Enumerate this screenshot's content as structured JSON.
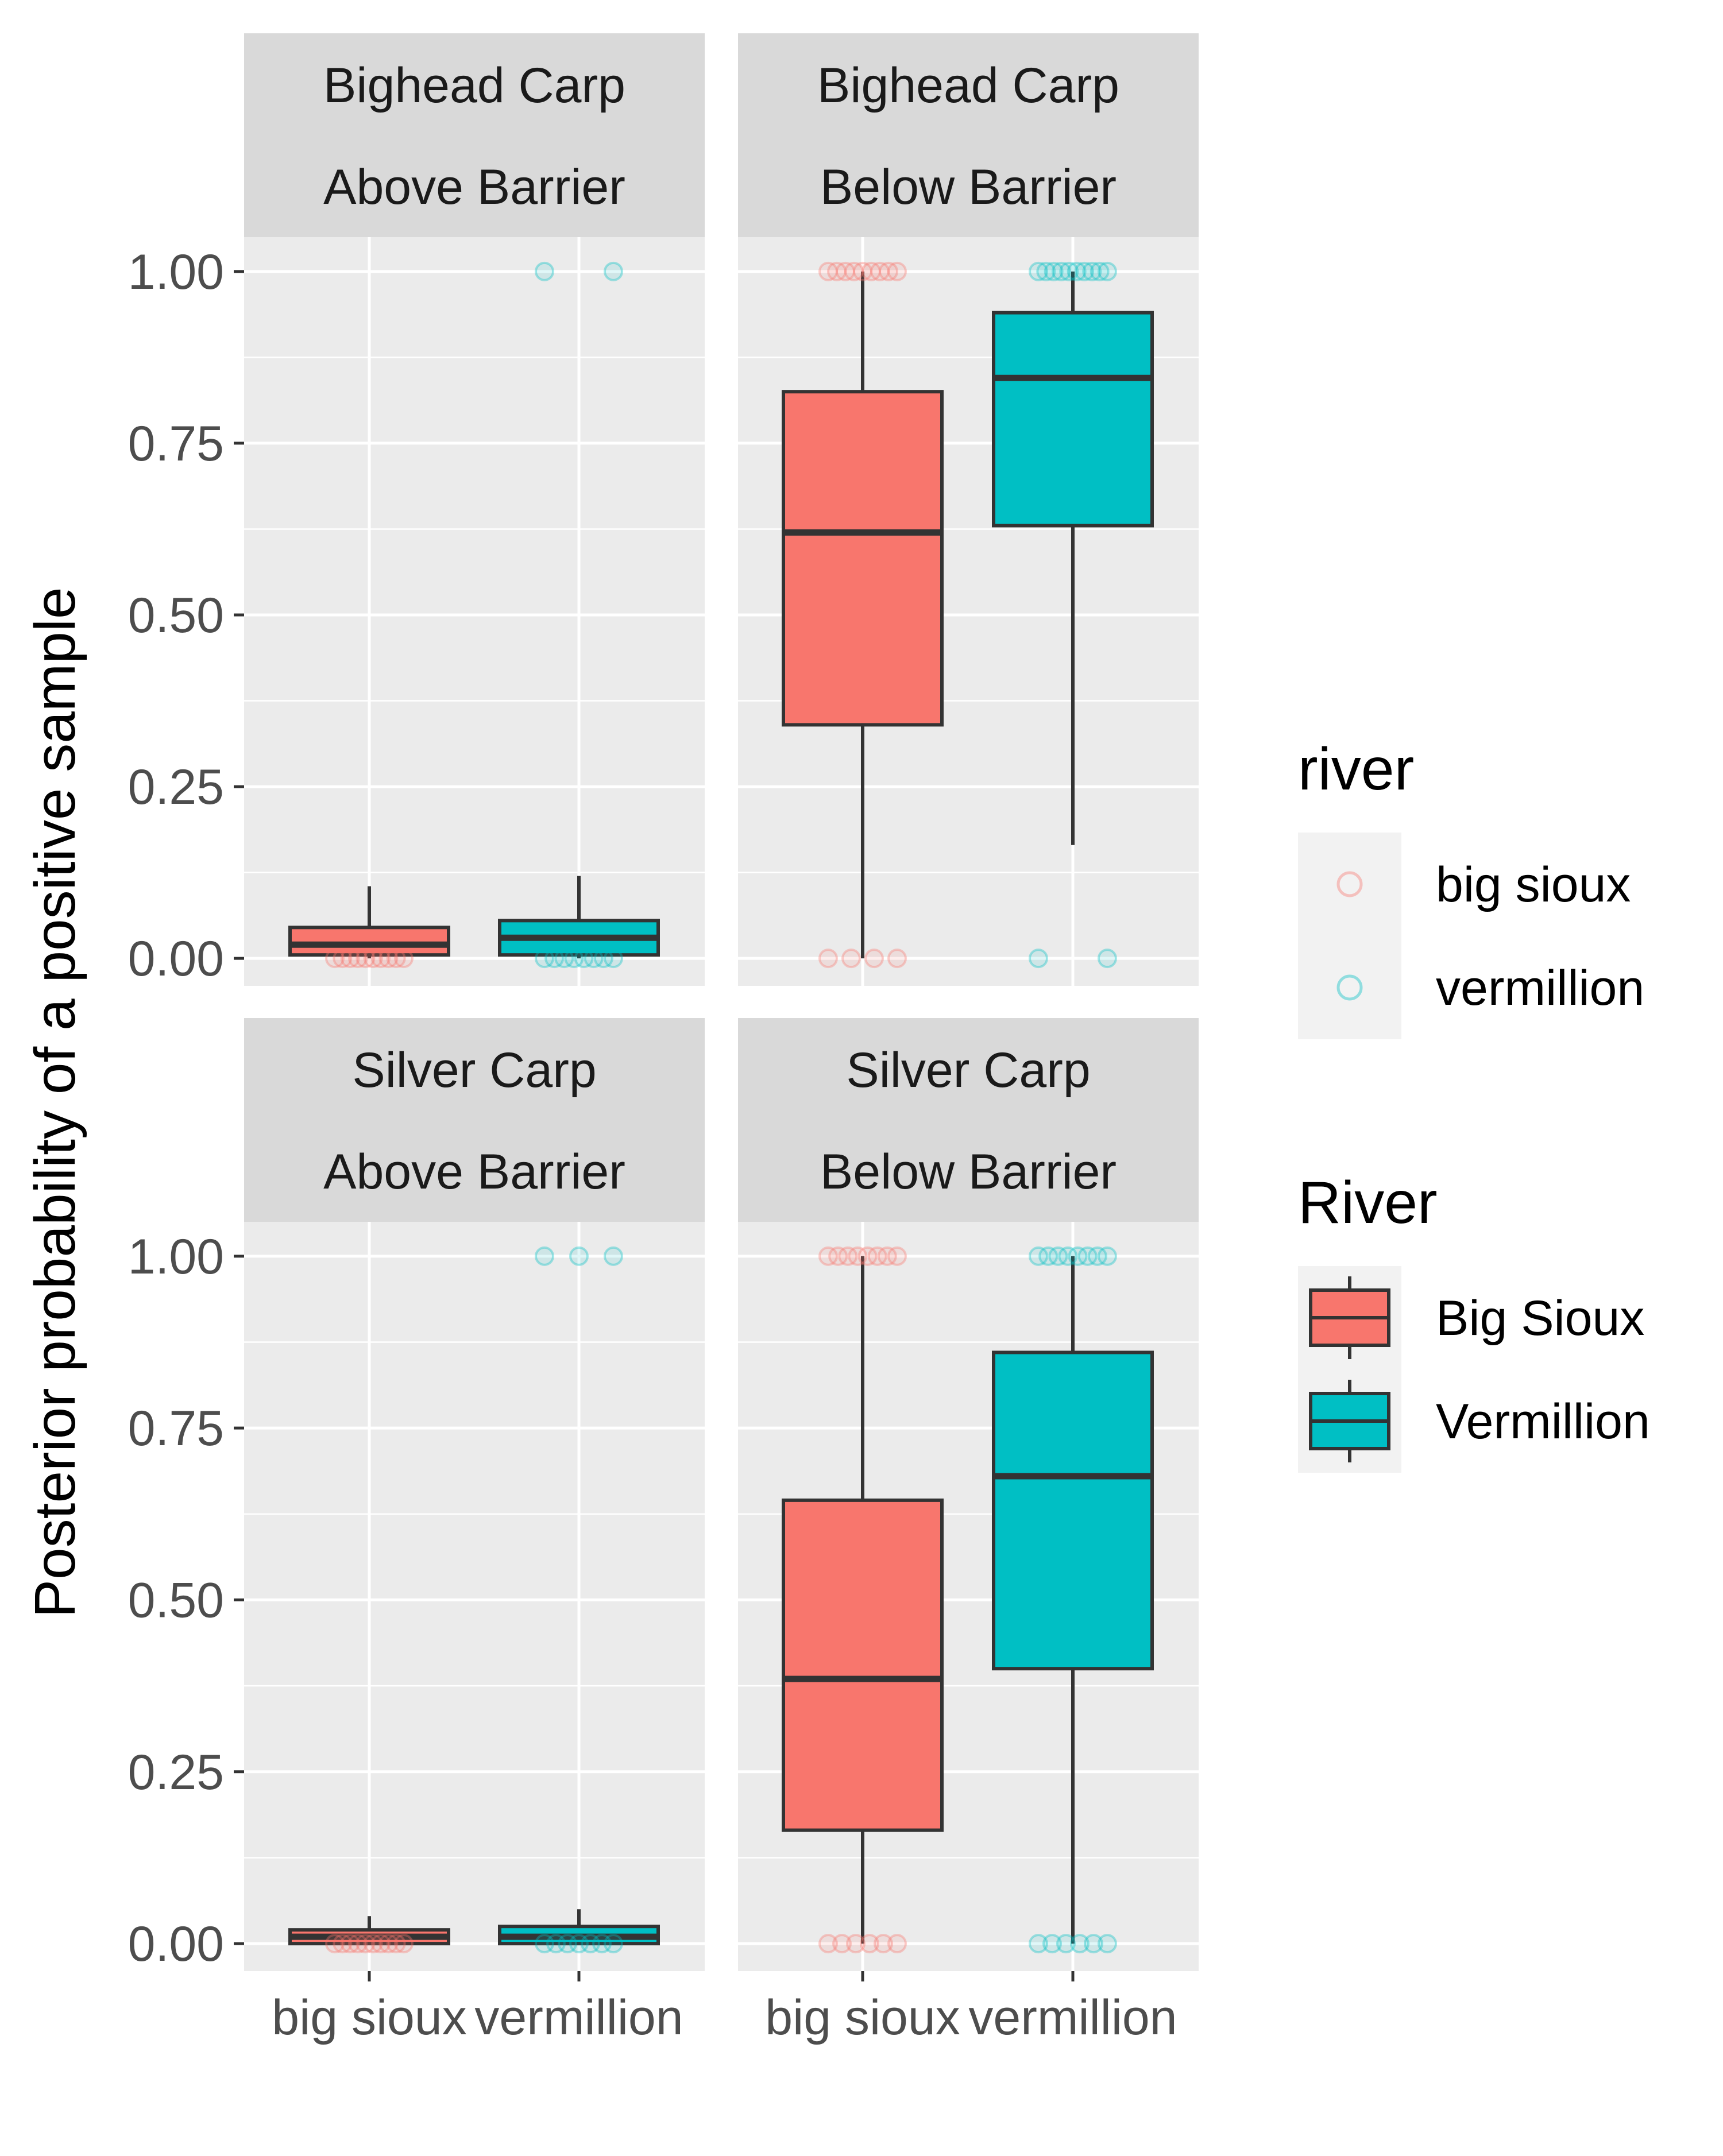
{
  "colors": {
    "big_sioux": "#F8766D",
    "vermillion": "#00BFC4",
    "panel_bg": "#EBEBEB",
    "strip_bg": "#D9D9D9",
    "grid": "#FFFFFF",
    "box_line": "#333333",
    "legend_key_bg": "#F2F2F2"
  },
  "chart_data": {
    "type": "box",
    "ylabel": "Posterior probability of a positive sample",
    "xlabel": "",
    "ylim": [
      -0.04,
      1.05
    ],
    "y_ticks": [
      "0.00",
      "0.25",
      "0.50",
      "0.75",
      "1.00"
    ],
    "y_tick_values": [
      0,
      0.25,
      0.5,
      0.75,
      1.0
    ],
    "categories": [
      "big sioux",
      "vermillion"
    ],
    "facets": [
      {
        "species": "Bighead Carp",
        "location": "Above Barrier",
        "boxes": [
          {
            "category": "big sioux",
            "min": 0.0,
            "q1": 0.005,
            "median": 0.02,
            "q3": 0.045,
            "max": 0.105
          },
          {
            "category": "vermillion",
            "min": 0.0,
            "q1": 0.005,
            "median": 0.03,
            "q3": 0.055,
            "max": 0.12
          }
        ],
        "points": [
          {
            "category": "big sioux",
            "values": [
              0.0,
              0.0,
              0.0,
              0.0,
              0.0,
              0.0,
              0.0,
              0.0,
              0.0,
              0.0
            ]
          },
          {
            "category": "vermillion",
            "values": [
              1.0,
              1.0,
              0.0,
              0.0,
              0.0,
              0.0,
              0.0,
              0.0,
              0.0,
              0.0
            ]
          }
        ]
      },
      {
        "species": "Bighead Carp",
        "location": "Below Barrier",
        "boxes": [
          {
            "category": "big sioux",
            "min": 0.0,
            "q1": 0.34,
            "median": 0.62,
            "q3": 0.825,
            "max": 1.0
          },
          {
            "category": "vermillion",
            "min": 0.165,
            "q1": 0.63,
            "median": 0.845,
            "q3": 0.94,
            "max": 1.0
          }
        ],
        "points": [
          {
            "category": "big sioux",
            "values": [
              1.0,
              1.0,
              1.0,
              1.0,
              1.0,
              1.0,
              1.0,
              1.0,
              1.0,
              0.0,
              0.0,
              0.0,
              0.0
            ]
          },
          {
            "category": "vermillion",
            "values": [
              1.0,
              1.0,
              1.0,
              1.0,
              1.0,
              1.0,
              1.0,
              1.0,
              1.0,
              1.0,
              0.0,
              0.0
            ]
          }
        ]
      },
      {
        "species": "Silver Carp",
        "location": "Above Barrier",
        "boxes": [
          {
            "category": "big sioux",
            "min": 0.0,
            "q1": 0.0,
            "median": 0.01,
            "q3": 0.02,
            "max": 0.04
          },
          {
            "category": "vermillion",
            "min": 0.0,
            "q1": 0.0,
            "median": 0.01,
            "q3": 0.025,
            "max": 0.05
          }
        ],
        "points": [
          {
            "category": "big sioux",
            "values": [
              0.0,
              0.0,
              0.0,
              0.0,
              0.0,
              0.0,
              0.0,
              0.0,
              0.0,
              0.0
            ]
          },
          {
            "category": "vermillion",
            "values": [
              1.0,
              1.0,
              1.0,
              0.0,
              0.0,
              0.0,
              0.0,
              0.0,
              0.0,
              0.0
            ]
          }
        ]
      },
      {
        "species": "Silver Carp",
        "location": "Below Barrier",
        "boxes": [
          {
            "category": "big sioux",
            "min": 0.0,
            "q1": 0.165,
            "median": 0.385,
            "q3": 0.645,
            "max": 1.0
          },
          {
            "category": "vermillion",
            "min": 0.0,
            "q1": 0.4,
            "median": 0.68,
            "q3": 0.86,
            "max": 1.0
          }
        ],
        "points": [
          {
            "category": "big sioux",
            "values": [
              1.0,
              1.0,
              1.0,
              1.0,
              1.0,
              1.0,
              1.0,
              1.0,
              0.0,
              0.0,
              0.0,
              0.0,
              0.0,
              0.0
            ]
          },
          {
            "category": "vermillion",
            "values": [
              1.0,
              1.0,
              1.0,
              1.0,
              1.0,
              1.0,
              1.0,
              1.0,
              0.0,
              0.0,
              0.0,
              0.0,
              0.0,
              0.0
            ]
          }
        ]
      }
    ],
    "legends": [
      {
        "title": "river",
        "kind": "point",
        "entries": [
          {
            "label": "big sioux",
            "color": "#F8766D"
          },
          {
            "label": "vermillion",
            "color": "#00BFC4"
          }
        ]
      },
      {
        "title": "River",
        "kind": "box",
        "entries": [
          {
            "label": "Big Sioux",
            "color": "#F8766D"
          },
          {
            "label": "Vermillion",
            "color": "#00BFC4"
          }
        ]
      }
    ],
    "legend_position": "right",
    "grid": true
  }
}
